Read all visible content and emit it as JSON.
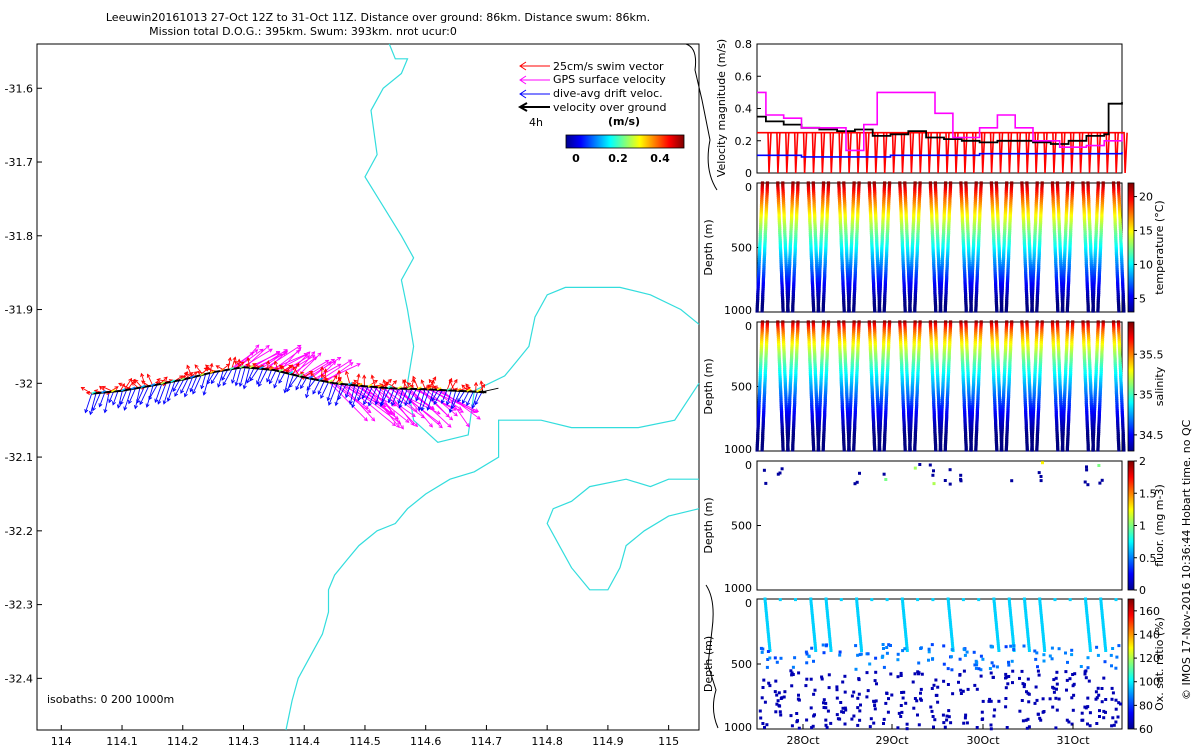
{
  "title": {
    "line1": "Leeuwin20161013 27-Oct 12Z to 31-Oct 11Z. Distance over ground: 86km. Distance swum: 86km.",
    "line2": "Mission total D.O.G.: 395km. Swum: 393km. nrot ucur:0"
  },
  "footer_note": "© IMOS 17-Nov-2016 10:36:44 Hobart time. no QC",
  "map": {
    "legend": {
      "swim": "25cm/s swim vector",
      "gps": "GPS surface velocity",
      "drift": "dive-avg drift veloc.",
      "vog": "velocity over ground",
      "time": "4h"
    },
    "colorbar": {
      "title": "(m/s)",
      "ticks": [
        "0",
        "0.2",
        "0.4"
      ]
    },
    "isobaths": "isobaths: 0   200  1000m"
  },
  "panel_labels": {
    "depth": "Depth (m)",
    "velocity": "Velocity magnitude (m/s)"
  },
  "chart_data": [
    {
      "type": "map",
      "name": "glider-track-map",
      "xlim": [
        113.96,
        115.05
      ],
      "ylim": [
        -32.47,
        -31.54
      ],
      "x_ticks": [
        "114",
        "114.1",
        "114.2",
        "114.3",
        "114.4",
        "114.5",
        "114.6",
        "114.7",
        "114.8",
        "114.9",
        "115"
      ],
      "y_ticks": [
        "-31.6",
        "-31.7",
        "-31.8",
        "-31.9",
        "-32",
        "-32.1",
        "-32.2",
        "-32.3",
        "-32.4"
      ],
      "track": [
        [
          114.05,
          -32.014
        ],
        [
          114.1,
          -32.01
        ],
        [
          114.15,
          -32.003
        ],
        [
          114.2,
          -31.995
        ],
        [
          114.25,
          -31.985
        ],
        [
          114.3,
          -31.978
        ],
        [
          114.35,
          -31.982
        ],
        [
          114.4,
          -31.992
        ],
        [
          114.45,
          -32.0
        ],
        [
          114.5,
          -32.004
        ],
        [
          114.55,
          -32.007
        ],
        [
          114.6,
          -32.008
        ],
        [
          114.65,
          -32.01
        ],
        [
          114.7,
          -32.012
        ]
      ],
      "coastline_200m": [
        [
          114.54,
          -31.54
        ],
        [
          114.55,
          -31.56
        ],
        [
          114.57,
          -31.56
        ],
        [
          114.56,
          -31.58
        ],
        [
          114.53,
          -31.6
        ],
        [
          114.51,
          -31.63
        ],
        [
          114.52,
          -31.69
        ],
        [
          114.5,
          -31.72
        ],
        [
          114.53,
          -31.76
        ],
        [
          114.56,
          -31.8
        ],
        [
          114.58,
          -31.83
        ],
        [
          114.56,
          -31.86
        ],
        [
          114.57,
          -31.9
        ],
        [
          114.58,
          -31.95
        ],
        [
          114.57,
          -32.0
        ],
        [
          114.58,
          -32.05
        ],
        [
          114.62,
          -32.08
        ],
        [
          114.67,
          -32.07
        ],
        [
          114.68,
          -32.01
        ],
        [
          114.73,
          -31.99
        ],
        [
          114.75,
          -31.97
        ],
        [
          114.77,
          -31.95
        ],
        [
          114.78,
          -31.91
        ],
        [
          114.8,
          -31.88
        ],
        [
          114.83,
          -31.87
        ],
        [
          114.87,
          -31.87
        ],
        [
          114.92,
          -31.87
        ],
        [
          114.97,
          -31.88
        ],
        [
          115.02,
          -31.9
        ],
        [
          115.05,
          -31.92
        ]
      ],
      "coastline_1000m": [
        [
          115.05,
          -32.0
        ],
        [
          115.01,
          -32.05
        ],
        [
          114.95,
          -32.06
        ],
        [
          114.9,
          -32.06
        ],
        [
          114.84,
          -32.06
        ],
        [
          114.79,
          -32.05
        ],
        [
          114.72,
          -32.05
        ],
        [
          114.72,
          -32.1
        ],
        [
          114.68,
          -32.12
        ],
        [
          114.64,
          -32.13
        ],
        [
          114.6,
          -32.15
        ],
        [
          114.57,
          -32.17
        ],
        [
          114.55,
          -32.19
        ],
        [
          114.52,
          -32.2
        ],
        [
          114.49,
          -32.22
        ],
        [
          114.47,
          -32.24
        ],
        [
          114.45,
          -32.26
        ],
        [
          114.44,
          -32.28
        ],
        [
          114.44,
          -32.31
        ],
        [
          114.43,
          -32.34
        ],
        [
          114.41,
          -32.37
        ],
        [
          114.39,
          -32.4
        ],
        [
          114.38,
          -32.43
        ],
        [
          114.37,
          -32.47
        ]
      ],
      "peninsula": [
        [
          115.05,
          -32.13
        ],
        [
          115.0,
          -32.13
        ],
        [
          114.97,
          -32.14
        ],
        [
          114.93,
          -32.13
        ],
        [
          114.87,
          -32.14
        ],
        [
          114.84,
          -32.16
        ],
        [
          114.81,
          -32.17
        ],
        [
          114.8,
          -32.19
        ],
        [
          114.82,
          -32.22
        ],
        [
          114.84,
          -32.25
        ],
        [
          114.87,
          -32.28
        ],
        [
          114.9,
          -32.28
        ],
        [
          114.92,
          -32.25
        ],
        [
          114.93,
          -32.22
        ],
        [
          114.96,
          -32.2
        ],
        [
          115.0,
          -32.18
        ],
        [
          115.05,
          -32.17
        ]
      ]
    },
    {
      "type": "line",
      "name": "velocity-magnitude",
      "ylabel": "Velocity magnitude (m/s)",
      "ylim": [
        0,
        0.8
      ],
      "y_ticks": [
        "0",
        "0.2",
        "0.4",
        "0.6",
        "0.8"
      ],
      "xlim": [
        27.5,
        31.6
      ],
      "series": [
        {
          "name": "velocity over ground",
          "color": "#000000",
          "x": [
            27.5,
            27.6,
            27.8,
            28.0,
            28.2,
            28.4,
            28.6,
            28.8,
            29.0,
            29.2,
            29.4,
            29.6,
            29.8,
            30.0,
            30.2,
            30.4,
            30.6,
            30.8,
            31.0,
            31.2,
            31.4,
            31.45,
            31.6
          ],
          "y": [
            0.35,
            0.32,
            0.3,
            0.28,
            0.27,
            0.26,
            0.27,
            0.23,
            0.24,
            0.26,
            0.22,
            0.21,
            0.2,
            0.19,
            0.2,
            0.2,
            0.19,
            0.18,
            0.2,
            0.23,
            0.24,
            0.43,
            0.44
          ]
        },
        {
          "name": "GPS surface velocity",
          "color": "#ff00ff",
          "x": [
            27.5,
            27.6,
            27.8,
            28.0,
            28.3,
            28.5,
            28.7,
            28.85,
            29.3,
            29.5,
            29.7,
            30.0,
            30.2,
            30.4,
            30.6,
            30.9,
            31.2,
            31.4,
            31.6
          ],
          "y": [
            0.5,
            0.36,
            0.34,
            0.28,
            0.28,
            0.14,
            0.3,
            0.5,
            0.5,
            0.37,
            0.22,
            0.28,
            0.36,
            0.28,
            0.2,
            0.16,
            0.17,
            0.2,
            0.24
          ]
        },
        {
          "name": "dive-avg drift veloc.",
          "color": "#0000ff",
          "x": [
            27.5,
            28.0,
            28.5,
            29.0,
            29.5,
            30.0,
            30.5,
            31.0,
            31.6
          ],
          "y": [
            0.11,
            0.1,
            0.1,
            0.11,
            0.11,
            0.12,
            0.12,
            0.12,
            0.13
          ]
        },
        {
          "name": "25cm/s swim vector",
          "color": "#ff0000",
          "x": [
            27.5,
            31.6
          ],
          "y": [
            0.24,
            0.24
          ]
        }
      ]
    },
    {
      "type": "scatter",
      "name": "temperature-section",
      "ylabel": "Depth (m)",
      "clabel": "temperature (°C)",
      "y_ticks": [
        "0",
        "500",
        "1000"
      ],
      "c_ticks": [
        "5",
        "10",
        "15",
        "20"
      ],
      "clim": [
        3,
        22
      ]
    },
    {
      "type": "scatter",
      "name": "salinity-section",
      "ylabel": "Depth (m)",
      "clabel": "salinity",
      "y_ticks": [
        "0",
        "500",
        "1000"
      ],
      "c_ticks": [
        "34.5",
        "35",
        "35.5"
      ],
      "clim": [
        34.3,
        35.9
      ]
    },
    {
      "type": "scatter",
      "name": "fluorescence-section",
      "ylabel": "Depth (m)",
      "clabel": "fluor. (mg m-3)",
      "y_ticks": [
        "0",
        "500",
        "1000"
      ],
      "c_ticks": [
        "0",
        "0.5",
        "1",
        "1.5",
        "2"
      ],
      "clim": [
        0,
        2
      ]
    },
    {
      "type": "scatter",
      "name": "oxygen-section",
      "ylabel": "Depth (m)",
      "clabel": "Ox. sat. ratio (%)",
      "y_ticks": [
        "0",
        "500",
        "1000"
      ],
      "c_ticks": [
        "60",
        "80",
        "100",
        "120",
        "140",
        "160"
      ],
      "clim": [
        60,
        170
      ],
      "x_ticks": [
        "28Oct",
        "29Oct",
        "30Oct",
        "31Oct"
      ]
    }
  ]
}
